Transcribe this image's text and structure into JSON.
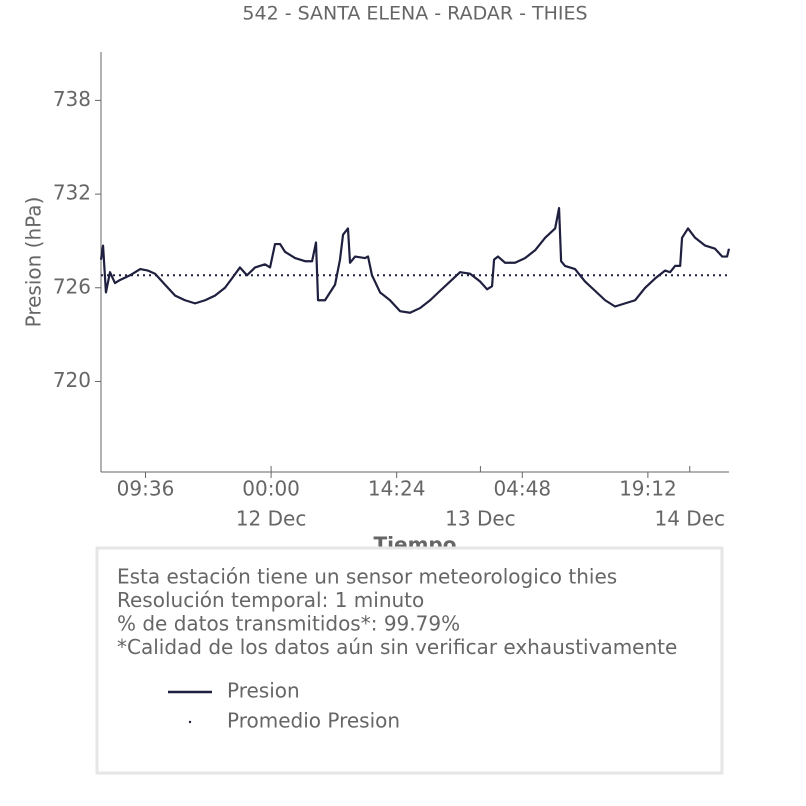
{
  "chart_data": {
    "type": "line",
    "title": "542 - SANTA ELENA - RADAR - THIES",
    "x_label": "Tiempo",
    "y_label": "Presion (hPa)",
    "xlim": [
      "11 Dec 04:30",
      "14 Dec 04:30"
    ],
    "xticks": [
      {
        "value": "11 Dec 09:36",
        "label": "09:36"
      },
      {
        "value": "12 Dec 00:00",
        "label": "00:00"
      },
      {
        "value": "12 Dec 14:24",
        "label": "14:24"
      },
      {
        "value": "13 Dec 04:48",
        "label": "04:48"
      },
      {
        "value": "13 Dec 19:12",
        "label": "19:12"
      }
    ],
    "date_ticks": [
      {
        "value": "12 Dec 00:00",
        "label": "12 Dec"
      },
      {
        "value": "13 Dec 00:00",
        "label": "13 Dec"
      },
      {
        "value": "14 Dec 00:00",
        "label": "14 Dec"
      }
    ],
    "ylim": [
      714.2,
      741.1
    ],
    "yticks": [
      720,
      726,
      732,
      738
    ],
    "series": [
      {
        "name": "Presion",
        "color": "#1f1f3f",
        "x": [
          "11 Dec 04:30",
          "11 Dec 04:44",
          "11 Dec 05:04",
          "11 Dec 05:32",
          "11 Dec 06:06",
          "11 Dec 06:41",
          "11 Dec 07:50",
          "11 Dec 09:00",
          "11 Dec 09:53",
          "11 Dec 10:42",
          "11 Dec 11:50",
          "11 Dec 13:00",
          "11 Dec 14:08",
          "11 Dec 15:17",
          "11 Dec 16:26",
          "11 Dec 17:34",
          "11 Dec 18:43",
          "11 Dec 19:31",
          "11 Dec 20:26",
          "11 Dec 21:14",
          "11 Dec 22:10",
          "11 Dec 23:18",
          "11 Dec 23:53",
          "12 Dec 00:27",
          "12 Dec 01:02",
          "12 Dec 01:36",
          "12 Dec 02:45",
          "12 Dec 03:54",
          "12 Dec 04:42",
          "12 Dec 05:09",
          "12 Dec 05:23",
          "12 Dec 06:11",
          "12 Dec 07:20",
          "12 Dec 07:54",
          "12 Dec 08:15",
          "12 Dec 08:49",
          "12 Dec 09:03",
          "12 Dec 09:38",
          "12 Dec 10:46",
          "12 Dec 11:07",
          "12 Dec 11:34",
          "12 Dec 12:30",
          "12 Dec 13:38",
          "12 Dec 14:47",
          "12 Dec 15:56",
          "12 Dec 17:05",
          "12 Dec 18:14",
          "12 Dec 19:22",
          "12 Dec 20:31",
          "12 Dec 21:40",
          "12 Dec 22:49",
          "12 Dec 23:58",
          "13 Dec 00:46",
          "13 Dec 01:20",
          "13 Dec 01:34",
          "13 Dec 02:01",
          "13 Dec 02:50",
          "13 Dec 03:58",
          "13 Dec 05:07",
          "13 Dec 06:16",
          "13 Dec 07:25",
          "13 Dec 08:34",
          "13 Dec 09:01",
          "13 Dec 09:15",
          "13 Dec 09:42",
          "13 Dec 10:51",
          "13 Dec 12:00",
          "13 Dec 13:09",
          "13 Dec 14:18",
          "13 Dec 15:26",
          "13 Dec 16:35",
          "13 Dec 17:44",
          "13 Dec 18:53",
          "13 Dec 20:02",
          "13 Dec 21:10",
          "13 Dec 21:45",
          "13 Dec 22:19",
          "13 Dec 22:54",
          "13 Dec 23:07",
          "13 Dec 23:48",
          "14 Dec 00:37",
          "14 Dec 01:46",
          "14 Dec 02:54",
          "14 Dec 03:43",
          "14 Dec 04:17",
          "14 Dec 04:30"
        ],
        "values": [
          727.8,
          728.7,
          725.7,
          727.0,
          726.3,
          726.5,
          726.8,
          727.2,
          727.1,
          726.9,
          726.2,
          725.5,
          725.2,
          725.0,
          725.2,
          725.5,
          726.0,
          726.6,
          727.3,
          726.8,
          727.3,
          727.5,
          727.3,
          728.8,
          728.8,
          728.3,
          727.9,
          727.7,
          727.7,
          728.9,
          725.2,
          725.2,
          726.2,
          727.8,
          729.4,
          729.8,
          727.6,
          728.0,
          727.9,
          728.0,
          726.8,
          725.7,
          725.2,
          724.5,
          724.4,
          724.7,
          725.2,
          725.8,
          726.4,
          727.0,
          726.9,
          726.4,
          725.9,
          726.1,
          727.8,
          728.0,
          727.6,
          727.6,
          727.9,
          728.4,
          729.2,
          729.8,
          731.1,
          727.7,
          727.4,
          727.2,
          726.4,
          725.8,
          725.2,
          724.8,
          725.0,
          725.2,
          726.0,
          726.6,
          727.1,
          727.0,
          727.4,
          727.4,
          729.2,
          729.8,
          729.2,
          728.7,
          728.5,
          728.0,
          728.0,
          728.5
        ]
      }
    ],
    "reference_line": {
      "name": "Promedio Presion",
      "value": 726.8,
      "color": "#1f1f3f"
    },
    "info": [
      "Esta estación tiene un sensor meteorologico thies",
      "Resolución temporal: 1 minuto",
      "% de datos transmitidos*: 99.79%",
      "*Calidad de los datos aún sin verificar exhaustivamente"
    ]
  }
}
